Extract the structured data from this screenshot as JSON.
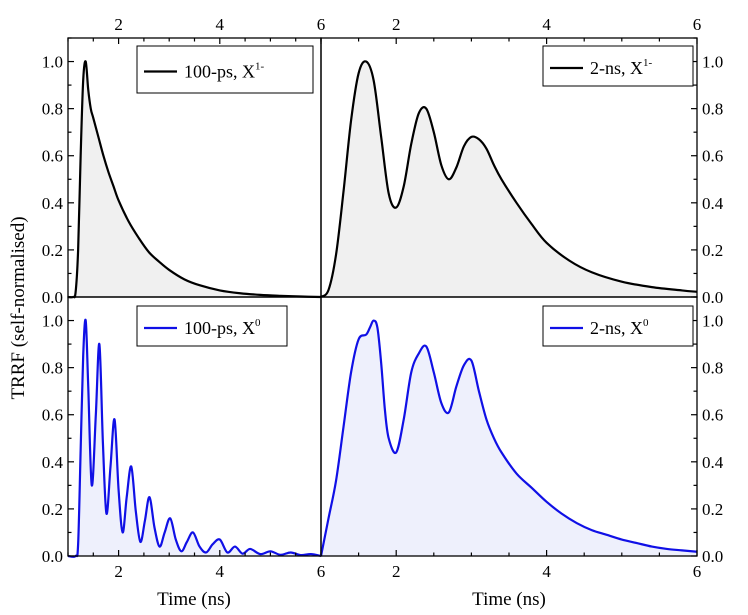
{
  "figure": {
    "ylabel": "TRRF (self-normalised)",
    "xlabel": "Time (ns)"
  },
  "colors": {
    "black": "#000000",
    "blue": "#1010e6",
    "fill_black": "#f0f0f0",
    "fill_blue": "#eef0fc"
  },
  "chart_data": [
    {
      "type": "area",
      "panel": "top-left",
      "legend": {
        "text": "100-ps, X",
        "sup": "1-",
        "placement": "top-right"
      },
      "color": "black",
      "xlim": [
        1,
        6
      ],
      "ylim": [
        0,
        1.1
      ],
      "x_ticks": [
        2,
        4,
        6
      ],
      "x_tick_labels_position": "top",
      "y_ticks": [
        0.0,
        0.2,
        0.4,
        0.6,
        0.8,
        1.0
      ],
      "y_tick_labels_position": "left",
      "x": [
        1.0,
        1.1,
        1.15,
        1.2,
        1.25,
        1.3,
        1.35,
        1.4,
        1.45,
        1.5,
        1.6,
        1.7,
        1.8,
        1.9,
        2.0,
        2.2,
        2.4,
        2.6,
        2.8,
        3.0,
        3.3,
        3.6,
        4.0,
        4.4,
        4.8,
        5.2,
        5.6,
        6.0
      ],
      "y": [
        0.0,
        0.0,
        0.02,
        0.2,
        0.6,
        0.92,
        1.0,
        0.88,
        0.8,
        0.76,
        0.68,
        0.6,
        0.53,
        0.47,
        0.41,
        0.32,
        0.25,
        0.19,
        0.15,
        0.115,
        0.075,
        0.05,
        0.028,
        0.016,
        0.009,
        0.005,
        0.002,
        0.0
      ]
    },
    {
      "type": "area",
      "panel": "top-right",
      "legend": {
        "text": "2-ns, X",
        "sup": "1-",
        "placement": "top-right"
      },
      "color": "black",
      "xlim": [
        1,
        6
      ],
      "ylim": [
        0,
        1.1
      ],
      "x_ticks": [
        2,
        4,
        6
      ],
      "x_tick_labels_position": "top",
      "y_ticks": [
        0.0,
        0.2,
        0.4,
        0.6,
        0.8,
        1.0
      ],
      "y_tick_labels_position": "right",
      "x": [
        1.0,
        1.1,
        1.2,
        1.3,
        1.4,
        1.5,
        1.6,
        1.7,
        1.8,
        1.9,
        2.0,
        2.1,
        2.2,
        2.3,
        2.4,
        2.5,
        2.6,
        2.7,
        2.8,
        2.9,
        3.0,
        3.1,
        3.2,
        3.3,
        3.4,
        3.6,
        3.8,
        4.0,
        4.3,
        4.6,
        5.0,
        5.4,
        5.8,
        6.0
      ],
      "y": [
        0.0,
        0.03,
        0.18,
        0.45,
        0.75,
        0.95,
        1.0,
        0.92,
        0.68,
        0.44,
        0.38,
        0.47,
        0.65,
        0.78,
        0.8,
        0.7,
        0.56,
        0.5,
        0.55,
        0.64,
        0.68,
        0.67,
        0.63,
        0.56,
        0.5,
        0.4,
        0.31,
        0.23,
        0.155,
        0.105,
        0.065,
        0.042,
        0.028,
        0.022
      ]
    },
    {
      "type": "area",
      "panel": "bottom-left",
      "legend": {
        "text": "100-ps, X",
        "sup": "0",
        "placement": "top-right"
      },
      "color": "blue",
      "xlim": [
        1,
        6
      ],
      "ylim": [
        0,
        1.1
      ],
      "x_ticks": [
        2,
        4,
        6
      ],
      "x_tick_labels_position": "bottom",
      "y_ticks": [
        0.0,
        0.2,
        0.4,
        0.6,
        0.8,
        1.0
      ],
      "y_tick_labels_position": "left",
      "x": [
        1.0,
        1.15,
        1.2,
        1.25,
        1.3,
        1.35,
        1.4,
        1.47,
        1.55,
        1.62,
        1.69,
        1.76,
        1.84,
        1.92,
        2.0,
        2.08,
        2.16,
        2.25,
        2.34,
        2.43,
        2.52,
        2.61,
        2.71,
        2.81,
        2.91,
        3.02,
        3.13,
        3.24,
        3.35,
        3.47,
        3.6,
        3.73,
        3.86,
        4.0,
        4.15,
        4.3,
        4.45,
        4.6,
        4.8,
        5.0,
        5.2,
        5.4,
        5.6,
        5.8,
        6.0
      ],
      "y": [
        0.0,
        0.0,
        0.05,
        0.45,
        0.85,
        1.0,
        0.72,
        0.3,
        0.6,
        0.9,
        0.48,
        0.18,
        0.38,
        0.58,
        0.28,
        0.1,
        0.25,
        0.38,
        0.19,
        0.06,
        0.15,
        0.25,
        0.12,
        0.04,
        0.1,
        0.16,
        0.07,
        0.02,
        0.06,
        0.1,
        0.04,
        0.015,
        0.05,
        0.07,
        0.015,
        0.04,
        0.01,
        0.03,
        0.008,
        0.02,
        0.005,
        0.015,
        0.004,
        0.008,
        0.0
      ]
    },
    {
      "type": "area",
      "panel": "bottom-right",
      "legend": {
        "text": "2-ns, X",
        "sup": "0",
        "placement": "top-right"
      },
      "color": "blue",
      "xlim": [
        1,
        6
      ],
      "ylim": [
        0,
        1.1
      ],
      "x_ticks": [
        2,
        4,
        6
      ],
      "x_tick_labels_position": "bottom",
      "y_ticks": [
        0.0,
        0.2,
        0.4,
        0.6,
        0.8,
        1.0
      ],
      "y_tick_labels_position": "right",
      "x": [
        1.0,
        1.1,
        1.2,
        1.3,
        1.4,
        1.5,
        1.6,
        1.65,
        1.7,
        1.75,
        1.8,
        1.85,
        1.9,
        2.0,
        2.1,
        2.2,
        2.3,
        2.4,
        2.5,
        2.6,
        2.7,
        2.8,
        2.9,
        3.0,
        3.1,
        3.2,
        3.3,
        3.4,
        3.6,
        3.8,
        4.0,
        4.2,
        4.4,
        4.6,
        4.8,
        5.0,
        5.2,
        5.4,
        5.6,
        5.8,
        6.0
      ],
      "y": [
        0.0,
        0.16,
        0.32,
        0.55,
        0.78,
        0.92,
        0.94,
        0.97,
        1.0,
        0.97,
        0.82,
        0.62,
        0.5,
        0.44,
        0.58,
        0.78,
        0.86,
        0.89,
        0.78,
        0.65,
        0.61,
        0.72,
        0.81,
        0.83,
        0.7,
        0.58,
        0.5,
        0.44,
        0.35,
        0.29,
        0.23,
        0.18,
        0.14,
        0.11,
        0.09,
        0.07,
        0.055,
        0.04,
        0.03,
        0.024,
        0.018
      ]
    }
  ]
}
